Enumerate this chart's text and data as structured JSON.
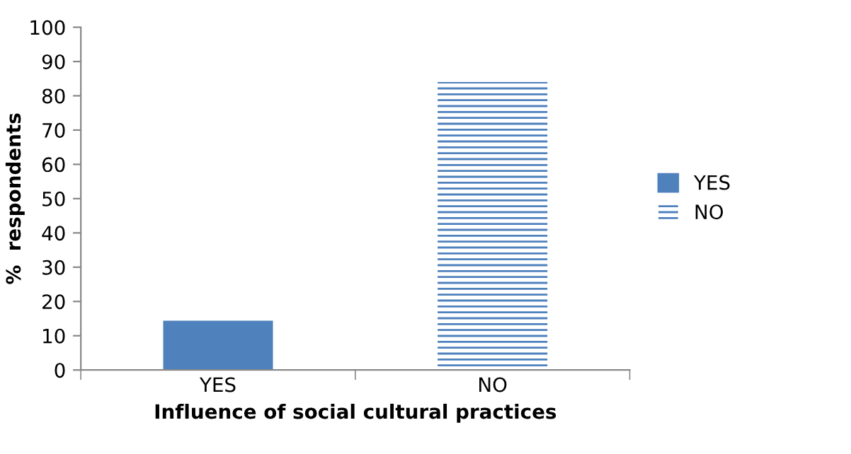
{
  "chart_data": {
    "type": "bar",
    "xlabel": "Influence of social cultural practices",
    "ylabel": "%  respondents",
    "categories": [
      "YES",
      "NO"
    ],
    "series": [
      {
        "name": "YES",
        "color": "#4f81bd",
        "values": [
          14.4,
          null
        ]
      },
      {
        "name": "NO",
        "color": "#4f81bd",
        "values": [
          null,
          84
        ],
        "line_style": "dashed"
      }
    ],
    "ylim": [
      0,
      100
    ],
    "yticks": [
      0,
      10,
      20,
      30,
      40,
      50,
      60,
      70,
      80,
      90,
      100
    ],
    "grid": false,
    "legend": "right"
  }
}
